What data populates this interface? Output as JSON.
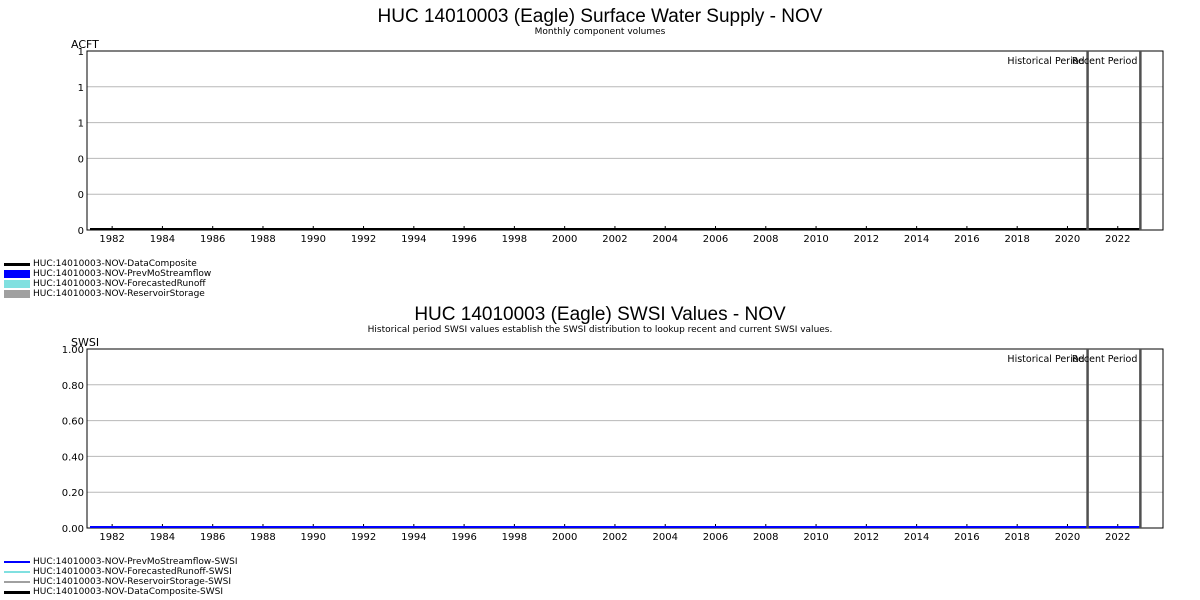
{
  "chart_data": [
    {
      "type": "area",
      "title": "HUC 14010003 (Eagle) Surface Water Supply - NOV",
      "subtitle": "Monthly component volumes",
      "ylabel": "ACFT",
      "xlabel": "",
      "xlim": [
        1981,
        2023.8
      ],
      "ylim": [
        0,
        1
      ],
      "x_ticks": [
        "1982",
        "1984",
        "1986",
        "1988",
        "1990",
        "1992",
        "1994",
        "1996",
        "1998",
        "2000",
        "2002",
        "2004",
        "2006",
        "2008",
        "2010",
        "2012",
        "2014",
        "2016",
        "2018",
        "2020",
        "2022"
      ],
      "y_ticks": [
        {
          "value": 0,
          "label": "0"
        },
        {
          "value": 0.2,
          "label": "0"
        },
        {
          "value": 0.4,
          "label": "0"
        },
        {
          "value": 0.6,
          "label": "1"
        },
        {
          "value": 0.8,
          "label": "1"
        },
        {
          "value": 1.0,
          "label": "1"
        }
      ],
      "grid": true,
      "period_markers": [
        {
          "x": 2020.8,
          "label": "Historical Period"
        },
        {
          "x": 2022.9,
          "label": "Recent Period"
        }
      ],
      "legend_position": "bottom-left",
      "series": [
        {
          "name": "HUC:14010003-NOV-DataComposite",
          "color": "#000000",
          "style": "line",
          "values": [
            0
          ]
        },
        {
          "name": "HUC:14010003-NOV-PrevMoStreamflow",
          "color": "#0000ff",
          "style": "area",
          "values": [
            0
          ]
        },
        {
          "name": "HUC:14010003-NOV-ForecastedRunoff",
          "color": "#80e0e0",
          "style": "area",
          "values": [
            0
          ]
        },
        {
          "name": "HUC:14010003-NOV-ReservoirStorage",
          "color": "#a0a0a0",
          "style": "area",
          "values": [
            0
          ]
        }
      ]
    },
    {
      "type": "line",
      "title": "HUC 14010003 (Eagle) SWSI Values - NOV",
      "subtitle": "Historical period SWSI values establish the SWSI distribution to lookup recent and current SWSI values.",
      "ylabel": "SWSI",
      "xlabel": "",
      "xlim": [
        1981,
        2023.8
      ],
      "ylim": [
        0,
        1
      ],
      "x_ticks": [
        "1982",
        "1984",
        "1986",
        "1988",
        "1990",
        "1992",
        "1994",
        "1996",
        "1998",
        "2000",
        "2002",
        "2004",
        "2006",
        "2008",
        "2010",
        "2012",
        "2014",
        "2016",
        "2018",
        "2020",
        "2022"
      ],
      "y_ticks": [
        {
          "value": 0,
          "label": "0.00"
        },
        {
          "value": 0.2,
          "label": "0.20"
        },
        {
          "value": 0.4,
          "label": "0.40"
        },
        {
          "value": 0.6,
          "label": "0.60"
        },
        {
          "value": 0.8,
          "label": "0.80"
        },
        {
          "value": 1.0,
          "label": "1.00"
        }
      ],
      "grid": true,
      "period_markers": [
        {
          "x": 2020.8,
          "label": "Historical Period"
        },
        {
          "x": 2022.9,
          "label": "Recent Period"
        }
      ],
      "legend_position": "bottom-left",
      "series": [
        {
          "name": "HUC:14010003-NOV-PrevMoStreamflow-SWSI",
          "color": "#0000ff",
          "style": "line",
          "values": [
            0
          ]
        },
        {
          "name": "HUC:14010003-NOV-ForecastedRunoff-SWSI",
          "color": "#80e0e0",
          "style": "line",
          "values": [
            0
          ]
        },
        {
          "name": "HUC:14010003-NOV-ReservoirStorage-SWSI",
          "color": "#a0a0a0",
          "style": "line",
          "values": [
            0
          ]
        },
        {
          "name": "HUC:14010003-NOV-DataComposite-SWSI",
          "color": "#000000",
          "style": "line",
          "values": [
            0
          ]
        }
      ]
    }
  ]
}
